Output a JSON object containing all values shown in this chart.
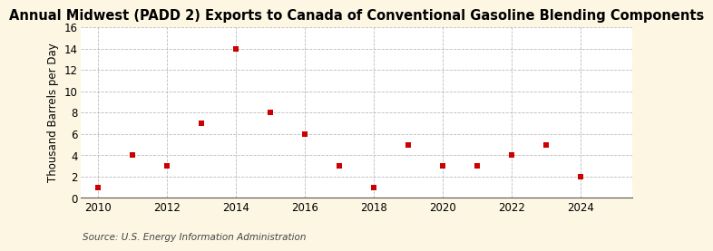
{
  "title": "Annual Midwest (PADD 2) Exports to Canada of Conventional Gasoline Blending Components",
  "ylabel": "Thousand Barrels per Day",
  "source": "Source: U.S. Energy Information Administration",
  "figure_bg_color": "#fdf6e3",
  "plot_bg_color": "#ffffff",
  "marker_color": "#cc0000",
  "marker": "s",
  "marker_size": 4,
  "x": [
    2010,
    2011,
    2012,
    2013,
    2014,
    2015,
    2016,
    2017,
    2018,
    2019,
    2020,
    2021,
    2022,
    2023,
    2024
  ],
  "y": [
    1,
    4,
    3,
    7,
    14,
    8,
    6,
    3,
    1,
    5,
    3,
    3,
    4,
    5,
    2
  ],
  "xlim": [
    2009.5,
    2025.5
  ],
  "ylim": [
    0,
    16
  ],
  "xticks": [
    2010,
    2012,
    2014,
    2016,
    2018,
    2020,
    2022,
    2024
  ],
  "yticks": [
    0,
    2,
    4,
    6,
    8,
    10,
    12,
    14,
    16
  ],
  "grid_color": "#aaaaaa",
  "grid_style": "--",
  "title_fontsize": 10.5,
  "label_fontsize": 8.5,
  "tick_fontsize": 8.5,
  "source_fontsize": 7.5
}
